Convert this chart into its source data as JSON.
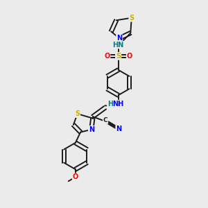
{
  "background_color": "#ebebeb",
  "bond_color": "#1a1a1a",
  "atom_colors": {
    "S": "#c8b400",
    "N": "#0000ff",
    "O": "#ff0000",
    "H": "#008080",
    "C": "#1a1a1a",
    "methoxy": "#ff0000"
  },
  "figsize": [
    3.0,
    3.0
  ],
  "dpi": 100
}
